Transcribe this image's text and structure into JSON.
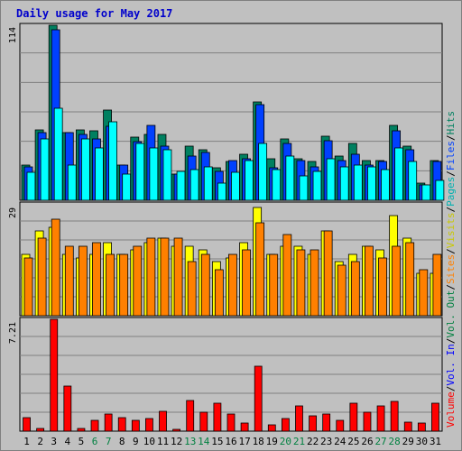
{
  "chart_data": {
    "type": "bar",
    "title": "Daily usage for May 2017",
    "days": [
      "1",
      "2",
      "3",
      "4",
      "5",
      "6",
      "7",
      "8",
      "9",
      "10",
      "11",
      "12",
      "13",
      "14",
      "15",
      "16",
      "17",
      "18",
      "19",
      "20",
      "21",
      "22",
      "23",
      "24",
      "25",
      "26",
      "27",
      "28",
      "29",
      "30",
      "31"
    ],
    "weekend_days": [
      6,
      7,
      13,
      14,
      20,
      21,
      27,
      28
    ],
    "day_colors": {
      "weekday": "#000000",
      "weekend": "#008040"
    },
    "panels": [
      {
        "name": "top",
        "max_label": "114",
        "max": 114,
        "series": [
          {
            "name": "Hits",
            "color": "#008060",
            "values": [
              23,
              46,
              114,
              44,
              46,
              45,
              59,
              23,
              41,
              43,
              43,
              17,
              35,
              33,
              21,
              25,
              30,
              64,
              27,
              40,
              27,
              25,
              42,
              29,
              37,
              26,
              26,
              49,
              35,
              11,
              26
            ]
          },
          {
            "name": "Files",
            "color": "#0040ff",
            "values": [
              22,
              44,
              111,
              44,
              43,
              40,
              48,
              23,
              38,
              49,
              35,
              17,
              29,
              31,
              19,
              26,
              27,
              62,
              21,
              37,
              26,
              22,
              39,
              26,
              30,
              23,
              25,
              45,
              33,
              10,
              25
            ]
          },
          {
            "name": "Pages",
            "color": "#00ffff",
            "values": [
              18,
              40,
              60,
              23,
              40,
              34,
              51,
              17,
              37,
              34,
              33,
              19,
              20,
              22,
              11,
              18,
              26,
              37,
              20,
              29,
              16,
              19,
              27,
              22,
              23,
              22,
              20,
              34,
              25,
              10,
              13
            ]
          }
        ]
      },
      {
        "name": "middle",
        "max_label": "29",
        "max": 29,
        "series": [
          {
            "name": "Visits",
            "color": "#ffff00",
            "values": [
              16,
              22,
              23,
              16,
              15,
              16,
              19,
              16,
              17,
              19,
              20,
              18,
              18,
              17,
              14,
              15,
              19,
              28,
              16,
              18,
              18,
              16,
              22,
              14,
              16,
              18,
              17,
              26,
              20,
              11,
              11
            ]
          },
          {
            "name": "Sites",
            "color": "#ff8000",
            "values": [
              15,
              20,
              25,
              18,
              18,
              19,
              16,
              16,
              18,
              20,
              20,
              20,
              14,
              16,
              12,
              16,
              17,
              24,
              16,
              21,
              17,
              17,
              22,
              13,
              14,
              18,
              15,
              18,
              19,
              12,
              16
            ]
          }
        ]
      },
      {
        "name": "bottom",
        "max_label": "7.21",
        "max": 7.21,
        "series": [
          {
            "name": "Volume",
            "color": "#ff0000",
            "values": [
              0.9,
              0.2,
              7.21,
              2.9,
              0.2,
              0.7,
              1.1,
              0.9,
              0.7,
              0.8,
              1.3,
              0.1,
              2.0,
              1.2,
              1.8,
              1.1,
              0.5,
              4.2,
              0.4,
              0.8,
              1.6,
              1.0,
              1.1,
              0.7,
              1.8,
              1.2,
              1.6,
              1.9,
              0.6,
              0.5,
              1.8
            ]
          }
        ]
      }
    ],
    "legend_right": [
      {
        "text": "Volume",
        "color": "#ff0000"
      },
      {
        "text": "/",
        "color": "#000000"
      },
      {
        "text": "Vol. In",
        "color": "#0000ff"
      },
      {
        "text": "/",
        "color": "#000000"
      },
      {
        "text": "Vol. Out",
        "color": "#008040"
      },
      {
        "text": "/",
        "color": "#000000"
      },
      {
        "text": "Sites",
        "color": "#ff8000"
      },
      {
        "text": "/",
        "color": "#000000"
      },
      {
        "text": "Visits",
        "color": "#c8c800"
      },
      {
        "text": "/",
        "color": "#000000"
      },
      {
        "text": "Pages",
        "color": "#00b0b0"
      },
      {
        "text": "/",
        "color": "#000000"
      },
      {
        "text": "Files",
        "color": "#0040ff"
      },
      {
        "text": "/",
        "color": "#000000"
      },
      {
        "text": "Hits",
        "color": "#008060"
      }
    ]
  }
}
